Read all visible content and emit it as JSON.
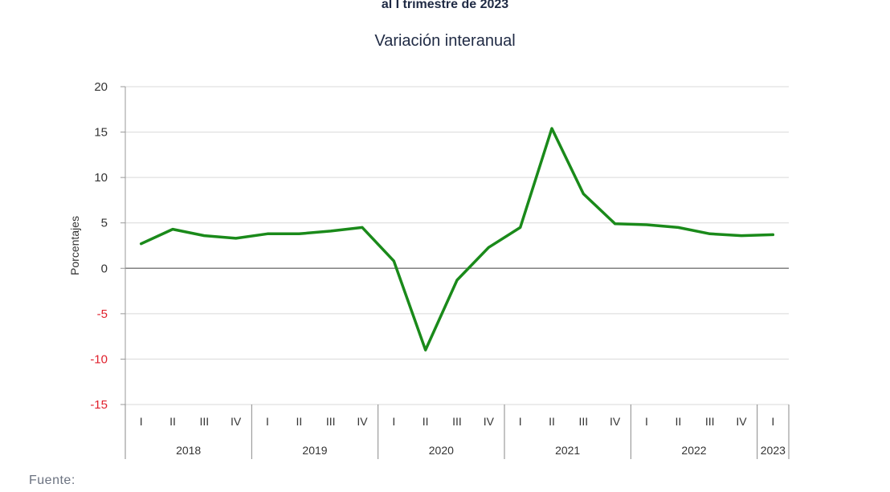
{
  "title": "al I trimestre de 2023",
  "subtitle": "Variación interanual",
  "source_label": "Fuente:",
  "colors": {
    "line": "#1a8a1a",
    "negative_tick": "#e0202c",
    "grid": "#d9d9d9",
    "zero_line": "#808080"
  },
  "chart_data": {
    "type": "line",
    "ylabel": "Porcentajes",
    "ylim": [
      -15,
      20
    ],
    "yticks": [
      20,
      15,
      10,
      5,
      0,
      -5,
      -10,
      -15
    ],
    "grid": true,
    "quarters": [
      "I",
      "II",
      "III",
      "IV",
      "I",
      "II",
      "III",
      "IV",
      "I",
      "II",
      "III",
      "IV",
      "I",
      "II",
      "III",
      "IV",
      "I",
      "II",
      "III",
      "IV",
      "I"
    ],
    "years": [
      {
        "label": "2018",
        "count": 4
      },
      {
        "label": "2019",
        "count": 4
      },
      {
        "label": "2020",
        "count": 4
      },
      {
        "label": "2021",
        "count": 4
      },
      {
        "label": "2022",
        "count": 4
      },
      {
        "label": "2023",
        "count": 1
      }
    ],
    "series": [
      {
        "values": [
          2.7,
          4.3,
          3.6,
          3.3,
          3.8,
          3.8,
          4.1,
          4.5,
          0.8,
          -9.0,
          -1.3,
          2.3,
          4.5,
          15.4,
          8.2,
          4.9,
          4.8,
          4.5,
          3.8,
          3.6,
          3.7
        ]
      }
    ]
  }
}
